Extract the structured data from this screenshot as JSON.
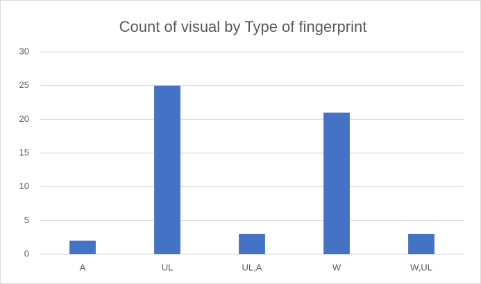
{
  "chart_data": {
    "type": "bar",
    "title": "Count of visual by Type of fingerprint",
    "categories": [
      "A",
      "UL",
      "UL,A",
      "W",
      "W,UL"
    ],
    "values": [
      2,
      25,
      3,
      21,
      3
    ],
    "color": "#4472c4",
    "ylim": [
      0,
      30
    ],
    "yticks": [
      0,
      5,
      10,
      15,
      20,
      25,
      30
    ],
    "grid": true
  }
}
